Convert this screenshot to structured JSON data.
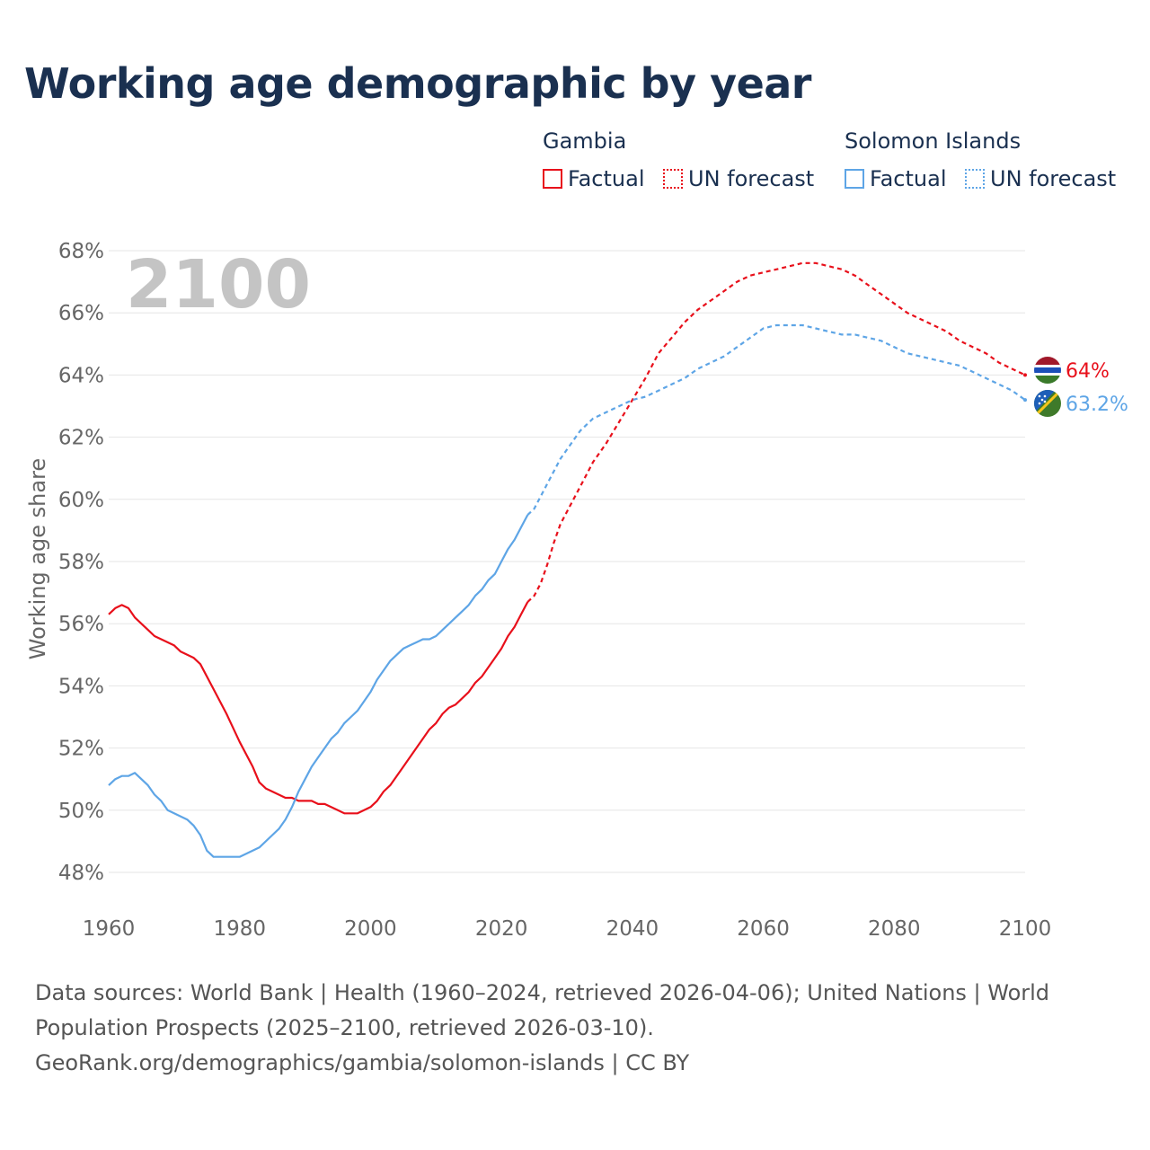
{
  "title": "Working age demographic by year",
  "legend": {
    "groups": [
      {
        "country": "Gambia",
        "factual": "Factual",
        "forecast": "UN forecast",
        "color": "#e8101b"
      },
      {
        "country": "Solomon Islands",
        "factual": "Factual",
        "forecast": "UN forecast",
        "color": "#5ea5e6"
      }
    ]
  },
  "year_watermark": "2100",
  "footer": {
    "line1": "Data sources: World Bank | Health (1960–2024, retrieved 2026-04-06); United Nations | World",
    "line2": "Population Prospects (2025–2100, retrieved 2026-03-10).",
    "line3": "GeoRank.org/demographics/gambia/solomon-islands | CC BY"
  },
  "chart_data": {
    "type": "line",
    "title": "Working age demographic by year",
    "xlabel": "",
    "ylabel": "Working age share",
    "xlim": [
      1960,
      2100
    ],
    "ylim": [
      47,
      68
    ],
    "x_ticks": [
      1960,
      1980,
      2000,
      2020,
      2040,
      2060,
      2080,
      2100
    ],
    "y_ticks": [
      48,
      50,
      52,
      54,
      56,
      58,
      60,
      62,
      64,
      66,
      68
    ],
    "y_tick_labels": [
      "48%",
      "50%",
      "52%",
      "54%",
      "56%",
      "58%",
      "60%",
      "62%",
      "64%",
      "66%",
      "68%"
    ],
    "grid": "horizontal",
    "factual_range": [
      1960,
      2024
    ],
    "forecast_range": [
      2025,
      2100
    ],
    "series": [
      {
        "name": "Gambia",
        "color": "#e8101b",
        "end_label": "64%",
        "points": [
          [
            1960,
            56.3
          ],
          [
            1961,
            56.5
          ],
          [
            1962,
            56.6
          ],
          [
            1963,
            56.5
          ],
          [
            1964,
            56.2
          ],
          [
            1966,
            55.8
          ],
          [
            1967,
            55.6
          ],
          [
            1970,
            55.3
          ],
          [
            1971,
            55.1
          ],
          [
            1973,
            54.9
          ],
          [
            1974,
            54.7
          ],
          [
            1976,
            53.9
          ],
          [
            1978,
            53.1
          ],
          [
            1980,
            52.2
          ],
          [
            1982,
            51.4
          ],
          [
            1983,
            50.9
          ],
          [
            1984,
            50.7
          ],
          [
            1986,
            50.5
          ],
          [
            1987,
            50.4
          ],
          [
            1988,
            50.4
          ],
          [
            1989,
            50.3
          ],
          [
            1991,
            50.3
          ],
          [
            1992,
            50.2
          ],
          [
            1993,
            50.2
          ],
          [
            1995,
            50.0
          ],
          [
            1996,
            49.9
          ],
          [
            1998,
            49.9
          ],
          [
            2000,
            50.1
          ],
          [
            2001,
            50.3
          ],
          [
            2002,
            50.6
          ],
          [
            2003,
            50.8
          ],
          [
            2005,
            51.4
          ],
          [
            2007,
            52.0
          ],
          [
            2009,
            52.6
          ],
          [
            2010,
            52.8
          ],
          [
            2011,
            53.1
          ],
          [
            2012,
            53.3
          ],
          [
            2013,
            53.4
          ],
          [
            2015,
            53.8
          ],
          [
            2016,
            54.1
          ],
          [
            2017,
            54.3
          ],
          [
            2019,
            54.9
          ],
          [
            2020,
            55.2
          ],
          [
            2021,
            55.6
          ],
          [
            2022,
            55.9
          ],
          [
            2023,
            56.3
          ],
          [
            2024,
            56.7
          ],
          [
            2025,
            56.9
          ],
          [
            2026,
            57.3
          ],
          [
            2027,
            57.9
          ],
          [
            2028,
            58.6
          ],
          [
            2029,
            59.2
          ],
          [
            2030,
            59.6
          ],
          [
            2032,
            60.4
          ],
          [
            2034,
            61.2
          ],
          [
            2036,
            61.8
          ],
          [
            2038,
            62.5
          ],
          [
            2040,
            63.2
          ],
          [
            2042,
            63.9
          ],
          [
            2044,
            64.7
          ],
          [
            2046,
            65.2
          ],
          [
            2048,
            65.7
          ],
          [
            2050,
            66.1
          ],
          [
            2052,
            66.4
          ],
          [
            2054,
            66.7
          ],
          [
            2056,
            67.0
          ],
          [
            2058,
            67.2
          ],
          [
            2060,
            67.3
          ],
          [
            2062,
            67.4
          ],
          [
            2064,
            67.5
          ],
          [
            2066,
            67.6
          ],
          [
            2068,
            67.6
          ],
          [
            2070,
            67.5
          ],
          [
            2072,
            67.4
          ],
          [
            2074,
            67.2
          ],
          [
            2076,
            66.9
          ],
          [
            2078,
            66.6
          ],
          [
            2080,
            66.3
          ],
          [
            2082,
            66.0
          ],
          [
            2084,
            65.8
          ],
          [
            2086,
            65.6
          ],
          [
            2088,
            65.4
          ],
          [
            2090,
            65.1
          ],
          [
            2092,
            64.9
          ],
          [
            2094,
            64.7
          ],
          [
            2096,
            64.4
          ],
          [
            2098,
            64.2
          ],
          [
            2100,
            64.0
          ]
        ]
      },
      {
        "name": "Solomon Islands",
        "color": "#5ea5e6",
        "end_label": "63.2%",
        "points": [
          [
            1960,
            50.8
          ],
          [
            1961,
            51.0
          ],
          [
            1962,
            51.1
          ],
          [
            1963,
            51.1
          ],
          [
            1964,
            51.2
          ],
          [
            1965,
            51.0
          ],
          [
            1966,
            50.8
          ],
          [
            1967,
            50.5
          ],
          [
            1968,
            50.3
          ],
          [
            1969,
            50.0
          ],
          [
            1971,
            49.8
          ],
          [
            1972,
            49.7
          ],
          [
            1973,
            49.5
          ],
          [
            1974,
            49.2
          ],
          [
            1975,
            48.7
          ],
          [
            1976,
            48.5
          ],
          [
            1978,
            48.5
          ],
          [
            1980,
            48.5
          ],
          [
            1982,
            48.7
          ],
          [
            1983,
            48.8
          ],
          [
            1985,
            49.2
          ],
          [
            1986,
            49.4
          ],
          [
            1987,
            49.7
          ],
          [
            1988,
            50.1
          ],
          [
            1989,
            50.6
          ],
          [
            1990,
            51.0
          ],
          [
            1991,
            51.4
          ],
          [
            1992,
            51.7
          ],
          [
            1993,
            52.0
          ],
          [
            1994,
            52.3
          ],
          [
            1995,
            52.5
          ],
          [
            1996,
            52.8
          ],
          [
            1997,
            53.0
          ],
          [
            1998,
            53.2
          ],
          [
            1999,
            53.5
          ],
          [
            2000,
            53.8
          ],
          [
            2001,
            54.2
          ],
          [
            2002,
            54.5
          ],
          [
            2003,
            54.8
          ],
          [
            2004,
            55.0
          ],
          [
            2005,
            55.2
          ],
          [
            2006,
            55.3
          ],
          [
            2007,
            55.4
          ],
          [
            2008,
            55.5
          ],
          [
            2009,
            55.5
          ],
          [
            2010,
            55.6
          ],
          [
            2011,
            55.8
          ],
          [
            2012,
            56.0
          ],
          [
            2013,
            56.2
          ],
          [
            2014,
            56.4
          ],
          [
            2015,
            56.6
          ],
          [
            2016,
            56.9
          ],
          [
            2017,
            57.1
          ],
          [
            2018,
            57.4
          ],
          [
            2019,
            57.6
          ],
          [
            2020,
            58.0
          ],
          [
            2021,
            58.4
          ],
          [
            2022,
            58.7
          ],
          [
            2023,
            59.1
          ],
          [
            2024,
            59.5
          ],
          [
            2025,
            59.7
          ],
          [
            2026,
            60.1
          ],
          [
            2027,
            60.5
          ],
          [
            2028,
            60.9
          ],
          [
            2029,
            61.3
          ],
          [
            2030,
            61.6
          ],
          [
            2032,
            62.2
          ],
          [
            2034,
            62.6
          ],
          [
            2036,
            62.8
          ],
          [
            2038,
            63.0
          ],
          [
            2040,
            63.2
          ],
          [
            2042,
            63.3
          ],
          [
            2044,
            63.5
          ],
          [
            2046,
            63.7
          ],
          [
            2048,
            63.9
          ],
          [
            2050,
            64.2
          ],
          [
            2052,
            64.4
          ],
          [
            2054,
            64.6
          ],
          [
            2056,
            64.9
          ],
          [
            2058,
            65.2
          ],
          [
            2060,
            65.5
          ],
          [
            2062,
            65.6
          ],
          [
            2064,
            65.6
          ],
          [
            2066,
            65.6
          ],
          [
            2068,
            65.5
          ],
          [
            2070,
            65.4
          ],
          [
            2072,
            65.3
          ],
          [
            2074,
            65.3
          ],
          [
            2076,
            65.2
          ],
          [
            2078,
            65.1
          ],
          [
            2080,
            64.9
          ],
          [
            2082,
            64.7
          ],
          [
            2084,
            64.6
          ],
          [
            2086,
            64.5
          ],
          [
            2088,
            64.4
          ],
          [
            2090,
            64.3
          ],
          [
            2092,
            64.1
          ],
          [
            2094,
            63.9
          ],
          [
            2096,
            63.7
          ],
          [
            2098,
            63.5
          ],
          [
            2100,
            63.2
          ]
        ]
      }
    ]
  }
}
